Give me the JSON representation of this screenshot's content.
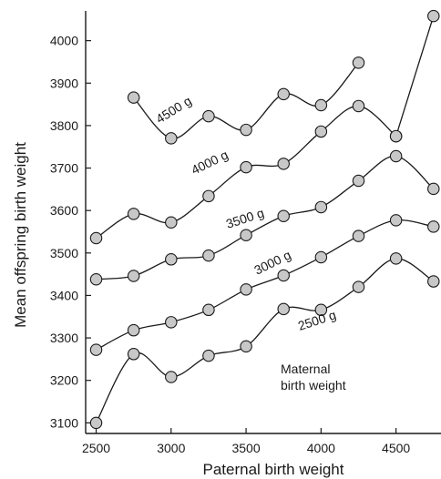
{
  "chart_data": {
    "type": "line",
    "xlabel": "Paternal birth weight",
    "ylabel": "Mean offspring birth weight",
    "xlim": [
      2430,
      4800
    ],
    "ylim": [
      3075,
      4070
    ],
    "xticks": [
      2500,
      3000,
      3500,
      4000,
      4500
    ],
    "yticks": [
      3100,
      3200,
      3300,
      3400,
      3500,
      3600,
      3700,
      3800,
      3900,
      4000
    ],
    "grid": false,
    "legend_title": [
      "Maternal",
      "birth weight"
    ],
    "series": [
      {
        "name": "2500 g",
        "x": [
          2500,
          2750,
          3000,
          3250,
          3500,
          3750,
          4000,
          4250,
          4500,
          4750
        ],
        "y": [
          3100,
          3262,
          3208,
          3258,
          3280,
          3368,
          3366,
          3420,
          3487,
          3433
        ]
      },
      {
        "name": "3000 g",
        "x": [
          2500,
          2750,
          3000,
          3250,
          3500,
          3750,
          4000,
          4250,
          4500,
          4750
        ],
        "y": [
          3272,
          3318,
          3337,
          3366,
          3414,
          3447,
          3490,
          3540,
          3577,
          3562
        ]
      },
      {
        "name": "3500 g",
        "x": [
          2500,
          2750,
          3000,
          3250,
          3500,
          3750,
          4000,
          4250,
          4500,
          4750
        ],
        "y": [
          3438,
          3446,
          3485,
          3494,
          3542,
          3587,
          3608,
          3670,
          3728,
          3651
        ]
      },
      {
        "name": "4000 g",
        "x": [
          2500,
          2750,
          3000,
          3250,
          3500,
          3750,
          4000,
          4250,
          4500
        ],
        "y": [
          3535,
          3592,
          3572,
          3634,
          3702,
          3710,
          3786,
          3846,
          3775
        ]
      },
      {
        "name": "4500 g",
        "x": [
          2750,
          3000,
          3250,
          3500,
          3750,
          4000,
          4250
        ],
        "y": [
          3866,
          3770,
          3822,
          3790,
          3874,
          3848,
          3948
        ]
      },
      {
        "name": "",
        "x": [
          4500,
          4750
        ],
        "y": [
          3775,
          4058
        ]
      }
    ]
  },
  "colors": {
    "line": "#1a1a1a",
    "marker_fill": "#c8c8c8"
  }
}
